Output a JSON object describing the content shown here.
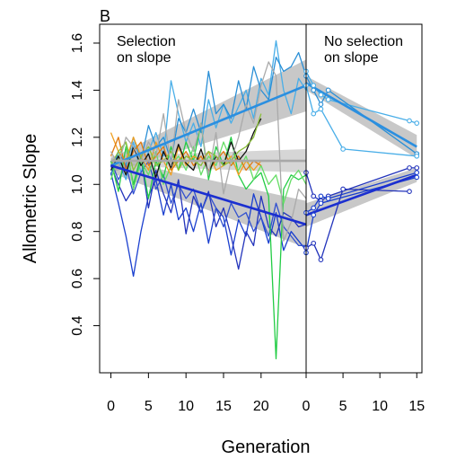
{
  "chart_data": {
    "type": "line",
    "panel_label": "B",
    "xlabel": "Generation",
    "ylabel": "Allometric Slope",
    "ylim": [
      0.2,
      1.68
    ],
    "y_ticks": [
      "0.4",
      "0.6",
      "0.8",
      "1.0",
      "1.2",
      "1.4",
      "1.6"
    ],
    "y_tick_values": [
      0.4,
      0.6,
      0.8,
      1.0,
      1.2,
      1.4,
      1.6
    ],
    "grid": false,
    "legend": "none",
    "panels": [
      {
        "title": "Selection\non slope",
        "xlim": [
          -1.5,
          26
        ],
        "x_ticks": [
          "0",
          "5",
          "10",
          "15",
          "20"
        ],
        "x_tick_values": [
          0,
          5,
          10,
          15,
          20
        ],
        "series": [
          {
            "color": "#49aee8",
            "x": [
              0,
              1,
              2,
              3,
              4,
              5,
              6,
              7,
              8,
              9,
              10,
              11,
              12,
              13,
              14,
              15,
              16,
              17,
              18,
              19,
              20,
              21,
              22,
              23,
              24,
              25,
              26
            ],
            "y": [
              1.06,
              1.1,
              1.02,
              1.18,
              1.05,
              1.14,
              1.22,
              1.12,
              1.44,
              1.3,
              1.18,
              1.26,
              1.16,
              1.36,
              1.24,
              1.34,
              1.26,
              1.33,
              1.4,
              1.28,
              1.45,
              1.38,
              1.61,
              1.4,
              1.3,
              1.45,
              1.4
            ]
          },
          {
            "color": "#2a8fd6",
            "x": [
              0,
              1,
              2,
              3,
              4,
              5,
              6,
              7,
              8,
              9,
              10,
              11,
              12,
              13,
              14,
              15,
              16,
              17,
              18,
              19,
              20,
              21,
              22,
              23,
              24,
              25,
              26
            ],
            "y": [
              1.04,
              1.14,
              1.08,
              1.2,
              1.1,
              1.25,
              1.16,
              1.2,
              1.1,
              1.28,
              1.22,
              1.32,
              1.22,
              1.48,
              1.3,
              1.34,
              1.28,
              1.44,
              1.32,
              1.5,
              1.4,
              1.36,
              1.54,
              1.48,
              1.5,
              1.56,
              1.46
            ]
          },
          {
            "color": "#1a3fcf",
            "x": [
              0,
              1,
              2,
              3,
              4,
              5,
              6,
              7,
              8,
              9,
              10,
              11,
              12,
              13,
              14,
              15,
              16,
              17,
              18,
              19,
              20,
              21,
              22,
              23,
              24,
              25,
              26
            ],
            "y": [
              1.05,
              0.92,
              0.78,
              0.61,
              0.8,
              0.95,
              1.02,
              0.87,
              1.0,
              0.85,
              0.9,
              0.8,
              0.92,
              0.75,
              0.9,
              0.86,
              0.7,
              0.85,
              0.78,
              0.96,
              0.86,
              0.75,
              0.88,
              0.72,
              0.8,
              0.76,
              0.72
            ]
          },
          {
            "color": "#2233bb",
            "x": [
              0,
              1,
              2,
              3,
              4,
              5,
              6,
              7,
              8,
              9,
              10,
              11,
              12,
              13,
              14,
              15,
              16,
              17,
              18,
              19,
              20,
              21,
              22,
              23,
              24,
              25,
              26
            ],
            "y": [
              1.08,
              1.0,
              0.93,
              0.98,
              1.12,
              0.9,
              1.06,
              0.96,
              0.88,
              1.02,
              0.79,
              0.95,
              0.88,
              0.97,
              0.82,
              0.9,
              0.78,
              0.64,
              0.8,
              0.74,
              0.95,
              0.82,
              0.78,
              0.88,
              0.86,
              0.82,
              0.83
            ]
          },
          {
            "color": "#3050d0",
            "x": [
              0,
              1,
              2,
              3,
              4,
              5,
              6,
              7,
              8,
              9,
              10,
              11,
              12,
              13,
              14,
              15,
              16,
              17,
              18,
              19,
              20,
              21,
              22,
              23,
              24,
              25,
              26
            ],
            "y": [
              1.1,
              1.02,
              1.08,
              0.96,
              1.05,
              1.1,
              0.98,
              1.04,
              0.92,
              1.0,
              0.94,
              0.98,
              0.88,
              0.96,
              0.9,
              0.82,
              0.92,
              0.86,
              0.88,
              0.8,
              0.86,
              0.78,
              0.92,
              0.82,
              0.78,
              0.74,
              0.74
            ]
          },
          {
            "color": "#22cc44",
            "x": [
              0,
              1,
              2,
              3,
              4,
              5,
              6,
              7,
              8,
              9,
              10,
              11,
              12,
              13,
              14,
              15,
              16,
              17,
              18,
              19,
              20,
              21,
              22,
              23,
              24,
              25,
              26
            ],
            "y": [
              1.1,
              0.97,
              1.16,
              1.0,
              1.12,
              0.94,
              1.1,
              1.03,
              1.16,
              1.06,
              1.18,
              1.1,
              1.26,
              1.02,
              1.16,
              1.08,
              1.2,
              1.04,
              0.98,
              1.02,
              1.05,
              0.95,
              0.26,
              0.98,
              1.04,
              1.02,
              1.04
            ]
          },
          {
            "color": "#66dd66",
            "x": [
              0,
              1,
              2,
              3,
              4,
              5,
              6,
              7,
              8,
              9,
              10,
              11,
              12,
              13,
              14,
              15,
              16,
              17,
              18,
              19,
              20,
              21,
              22,
              23,
              24,
              25,
              26
            ],
            "y": [
              1.02,
              1.12,
              1.18,
              0.98,
              1.1,
              1.04,
              1.14,
              1.0,
              1.08,
              1.12,
              1.06,
              1.16,
              1.04,
              1.12,
              1.08,
              1.18,
              1.1,
              1.06,
              1.12,
              1.02,
              1.08,
              1.0,
              1.04,
              0.92,
              1.02,
              1.06,
              1.0
            ]
          },
          {
            "color": "#f0a020",
            "x": [
              0,
              1,
              2,
              3,
              4,
              5,
              6,
              7,
              8,
              9,
              10,
              11,
              12,
              13,
              14,
              15,
              16,
              17,
              18,
              19,
              20
            ],
            "y": [
              1.22,
              1.14,
              1.1,
              1.2,
              1.12,
              1.06,
              1.18,
              1.1,
              1.04,
              1.16,
              1.08,
              1.12,
              1.1,
              1.14,
              1.06,
              1.08,
              1.12,
              1.04,
              1.1,
              1.06,
              1.1
            ]
          },
          {
            "color": "#e07a10",
            "x": [
              0,
              1,
              2,
              3,
              4,
              5,
              6,
              7,
              8,
              9,
              10,
              11,
              12,
              13,
              14,
              15,
              16,
              17,
              18,
              19,
              20
            ],
            "y": [
              1.12,
              1.2,
              1.06,
              1.14,
              1.18,
              1.08,
              1.12,
              1.16,
              1.06,
              1.1,
              1.14,
              1.08,
              1.12,
              1.06,
              1.1,
              1.14,
              1.08,
              1.12,
              1.06,
              1.1,
              1.08
            ]
          },
          {
            "color": "#111111",
            "x": [
              0,
              1,
              2,
              3,
              4,
              5,
              6,
              7,
              8,
              9,
              10,
              11,
              12,
              13,
              14,
              15,
              16,
              17,
              18,
              19,
              20
            ],
            "y": [
              1.06,
              1.12,
              1.04,
              1.16,
              1.08,
              1.13,
              1.03,
              1.14,
              1.07,
              1.17,
              1.09,
              1.06,
              1.15,
              1.05,
              1.12,
              1.08,
              1.18,
              1.1,
              1.14,
              1.22,
              1.28
            ]
          },
          {
            "color": "#8bbf3a",
            "x": [
              0,
              1,
              2,
              3,
              4,
              5,
              6,
              7,
              8,
              9,
              10,
              11,
              12,
              13,
              14,
              15,
              16,
              17,
              18,
              19,
              20
            ],
            "y": [
              1.08,
              1.14,
              1.18,
              1.06,
              1.12,
              1.16,
              1.08,
              1.1,
              1.14,
              1.06,
              1.12,
              1.1,
              1.08,
              1.14,
              1.12,
              1.08,
              1.1,
              1.14,
              1.16,
              1.2,
              1.3
            ]
          },
          {
            "color": "#aaaaaa",
            "x": [
              0,
              1,
              2,
              3,
              4,
              5,
              6,
              7,
              8,
              9,
              10,
              11,
              12,
              13,
              14,
              15,
              16,
              17,
              18,
              19,
              20,
              21,
              22,
              23,
              24,
              25,
              26
            ],
            "y": [
              1.14,
              1.08,
              1.2,
              1.16,
              1.1,
              1.18,
              1.12,
              1.3,
              1.08,
              1.36,
              1.22,
              1.14,
              1.26,
              1.04,
              1.22,
              0.96,
              1.1,
              1.2,
              1.34,
              1.26,
              1.42,
              1.52,
              1.46,
              0.76,
              0.84,
              0.98,
              0.94
            ]
          }
        ],
        "fits": [
          {
            "name": "",
            "color": "#2b8fe0",
            "x": [
              0,
              26
            ],
            "y": [
              1.08,
              1.42
            ],
            "band_halfwidth": [
              0.03,
              0.11
            ],
            "band_color": "#9a9a9a"
          },
          {
            "name": "",
            "color": "#1b2fd0",
            "x": [
              0,
              26
            ],
            "y": [
              1.08,
              0.83
            ],
            "band_halfwidth": [
              0.03,
              0.1
            ],
            "band_color": "#9a9a9a"
          },
          {
            "name": "",
            "color": "#a8a8a8",
            "x": [
              0,
              26
            ],
            "y": [
              1.1,
              1.1
            ],
            "band_halfwidth": [
              0.02,
              0.05
            ],
            "band_color": "#b5b5b5"
          }
        ]
      },
      {
        "title": "No selection\non slope",
        "xlim": [
          0,
          15.7
        ],
        "x_ticks": [
          "0",
          "5",
          "10",
          "15"
        ],
        "x_tick_values": [
          0,
          5,
          10,
          15
        ],
        "series": [
          {
            "color": "#49aee8",
            "x": [
              0,
              1,
              2,
              3,
              14,
              15
            ],
            "y": [
              1.48,
              1.42,
              1.38,
              1.36,
              1.27,
              1.26
            ],
            "markers": true
          },
          {
            "color": "#2a8fd6",
            "x": [
              0,
              1,
              2,
              3,
              15
            ],
            "y": [
              1.46,
              1.4,
              1.34,
              1.4,
              1.13
            ],
            "markers": true
          },
          {
            "color": "#49aee8",
            "x": [
              0,
              1,
              2,
              5,
              15
            ],
            "y": [
              1.42,
              1.3,
              1.32,
              1.15,
              1.12
            ],
            "markers": true
          },
          {
            "color": "#2233bb",
            "x": [
              0,
              1,
              2,
              3,
              14,
              15
            ],
            "y": [
              1.05,
              0.95,
              0.93,
              0.95,
              1.07,
              1.07
            ],
            "markers": true
          },
          {
            "color": "#1a3fcf",
            "x": [
              0,
              1,
              2,
              3,
              15
            ],
            "y": [
              0.88,
              0.9,
              0.95,
              0.94,
              1.05
            ],
            "markers": true
          },
          {
            "color": "#2233bb",
            "x": [
              0,
              1,
              2,
              5,
              14
            ],
            "y": [
              0.73,
              0.75,
              0.68,
              0.98,
              0.97
            ],
            "markers": true
          },
          {
            "color": "#1a3fcf",
            "x": [
              0,
              1,
              2,
              15
            ],
            "y": [
              0.71,
              0.87,
              0.92,
              1.03
            ],
            "markers": true
          }
        ],
        "fits": [
          {
            "name": "",
            "color": "#2b8fe0",
            "x": [
              0,
              15
            ],
            "y": [
              1.43,
              1.16
            ],
            "band_halfwidth": [
              0.03,
              0.05
            ],
            "band_color": "#9a9a9a"
          },
          {
            "name": "",
            "color": "#1b2fd0",
            "x": [
              0,
              15
            ],
            "y": [
              0.87,
              1.04
            ],
            "band_halfwidth": [
              0.05,
              0.03
            ],
            "band_color": "#9a9a9a"
          }
        ]
      }
    ]
  }
}
